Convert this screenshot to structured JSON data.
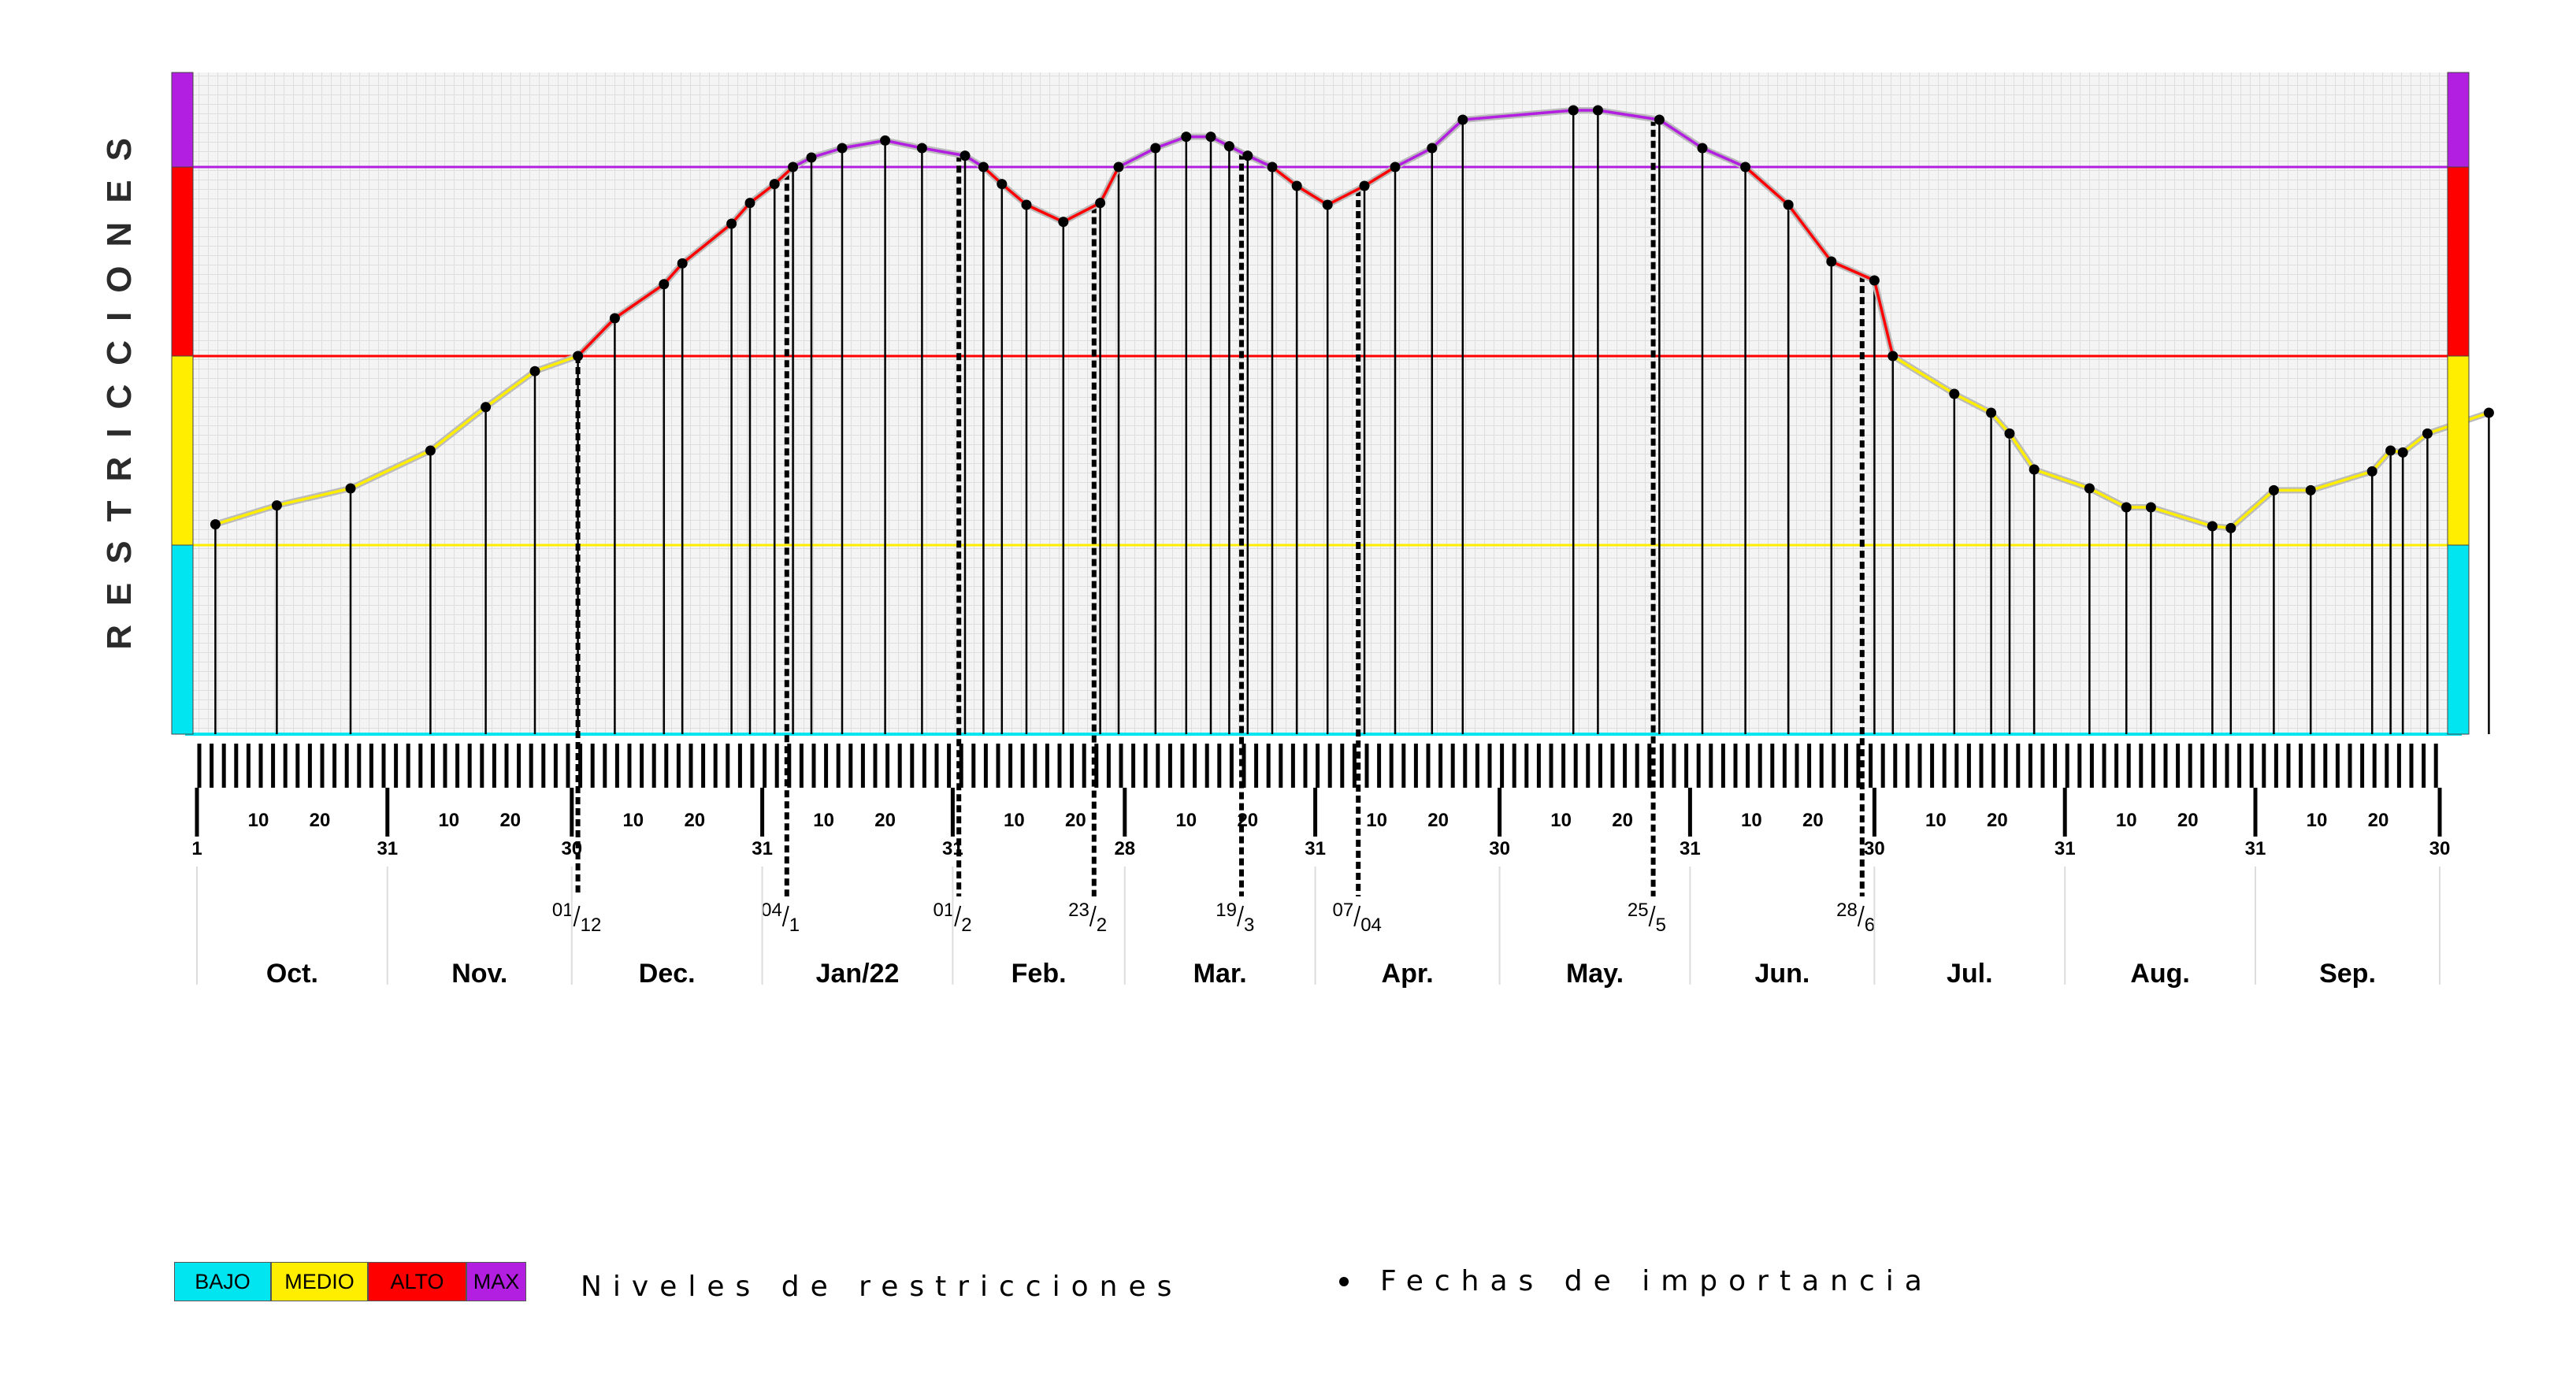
{
  "chart_data": {
    "type": "line",
    "ylabel": "RESTRICCIONES",
    "ylim": [
      0,
      3.5
    ],
    "levels": [
      {
        "name": "BAJO",
        "from": 0,
        "to": 1,
        "color": "#00e5f0"
      },
      {
        "name": "MEDIO",
        "from": 1,
        "to": 2,
        "color": "#ffee00"
      },
      {
        "name": "ALTO",
        "from": 2,
        "to": 3,
        "color": "#ff0000"
      },
      {
        "name": "MAX",
        "from": 3,
        "to": 3.5,
        "color": "#b21fe0"
      }
    ],
    "months": [
      "Oct.",
      "Nov.",
      "Dec.",
      "Jan/22",
      "Feb.",
      "Mar.",
      "Apr.",
      "May.",
      "Jun.",
      "Jul.",
      "Aug.",
      "Sep."
    ],
    "month_lengths": [
      31,
      30,
      31,
      31,
      28,
      31,
      30,
      31,
      30,
      31,
      31,
      30
    ],
    "month_end_labels": [
      "31",
      "30",
      "31",
      "31",
      "28",
      "31",
      "30",
      "31",
      "30",
      "31",
      "31",
      "30"
    ],
    "start_label": "1",
    "tick_labels": [
      "10",
      "20"
    ],
    "series": [
      {
        "values": [
          [
            3,
            1.11
          ],
          [
            13,
            1.21
          ],
          [
            25,
            1.3
          ],
          [
            38,
            1.5
          ],
          [
            47,
            1.73
          ],
          [
            55,
            1.92
          ],
          [
            62,
            2.0
          ],
          [
            68,
            2.2
          ],
          [
            76,
            2.38
          ],
          [
            79,
            2.49
          ],
          [
            87,
            2.7
          ],
          [
            90,
            2.81
          ],
          [
            94,
            2.91
          ],
          [
            97,
            3.0
          ],
          [
            100,
            3.05
          ],
          [
            105,
            3.1
          ],
          [
            112,
            3.14
          ],
          [
            118,
            3.1
          ],
          [
            125,
            3.06
          ],
          [
            128,
            3.0
          ],
          [
            131,
            2.91
          ],
          [
            135,
            2.8
          ],
          [
            141,
            2.71
          ],
          [
            147,
            2.81
          ],
          [
            150,
            3.0
          ],
          [
            156,
            3.1
          ],
          [
            161,
            3.16
          ],
          [
            165,
            3.16
          ],
          [
            168,
            3.11
          ],
          [
            171,
            3.06
          ],
          [
            175,
            3.0
          ],
          [
            179,
            2.9
          ],
          [
            184,
            2.8
          ],
          [
            190,
            2.9
          ],
          [
            195,
            3.0
          ],
          [
            201,
            3.1
          ],
          [
            206,
            3.25
          ],
          [
            224,
            3.3
          ],
          [
            228,
            3.3
          ],
          [
            238,
            3.25
          ],
          [
            245,
            3.1
          ],
          [
            252,
            3.0
          ],
          [
            259,
            2.8
          ],
          [
            266,
            2.5
          ],
          [
            273,
            2.4
          ],
          [
            276,
            2.0
          ],
          [
            286,
            1.8
          ],
          [
            292,
            1.7
          ],
          [
            295,
            1.59
          ],
          [
            299,
            1.4
          ],
          [
            308,
            1.3
          ],
          [
            314,
            1.2
          ],
          [
            318,
            1.2
          ],
          [
            328,
            1.1
          ],
          [
            331,
            1.09
          ],
          [
            338,
            1.29
          ],
          [
            344,
            1.29
          ],
          [
            354,
            1.39
          ],
          [
            357,
            1.5
          ],
          [
            359,
            1.49
          ],
          [
            363,
            1.59
          ],
          [
            373,
            1.7
          ]
        ]
      }
    ],
    "key_dates": [
      {
        "day": 62,
        "label_main": "01",
        "label_sub": "12"
      },
      {
        "day": 96,
        "label_main": "04",
        "label_sub": "1"
      },
      {
        "day": 124,
        "label_main": "01",
        "label_sub": "2"
      },
      {
        "day": 146,
        "label_main": "23",
        "label_sub": "2"
      },
      {
        "day": 170,
        "label_main": "19",
        "label_sub": "3"
      },
      {
        "day": 189,
        "label_main": "07",
        "label_sub": "04"
      },
      {
        "day": 237,
        "label_main": "25",
        "label_sub": "5"
      },
      {
        "day": 271,
        "label_main": "28",
        "label_sub": "6"
      }
    ],
    "grid": true
  },
  "legend": {
    "items": [
      {
        "label": "BAJO",
        "color": "#00e5f0"
      },
      {
        "label": "MEDIO",
        "color": "#ffee00"
      },
      {
        "label": "ALTO",
        "color": "#ff0000"
      },
      {
        "label": "MAX",
        "color": "#b21fe0"
      }
    ],
    "caption": "Niveles de restricciones",
    "dates_caption": "Fechas de importancia"
  }
}
